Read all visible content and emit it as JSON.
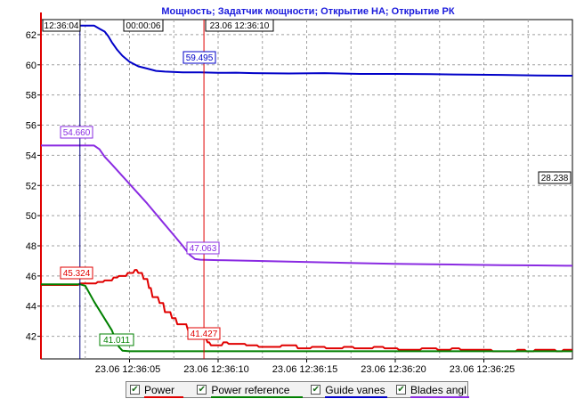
{
  "chart_data": {
    "type": "line",
    "title": "Мощность; Задатчик мощности; Открытие НА; Открытие РК",
    "xlabel": "",
    "ylabel": "",
    "ylim": [
      40.5,
      63
    ],
    "yticks": [
      "42",
      "44",
      "46",
      "48",
      "50",
      "52",
      "54",
      "56",
      "58",
      "60",
      "62"
    ],
    "xticks": [
      "23.06  12:36:05",
      "23.06  12:36:10",
      "23.06  12:36:15",
      "23.06  12:36:20",
      "23.06  12:36:25"
    ],
    "grid": true,
    "x_unit": "seconds after 12:36:00",
    "series": [
      {
        "name": "Power",
        "color": "#e00000",
        "points": [
          [
            0,
            45.4
          ],
          [
            2.1,
            45.4
          ],
          [
            2.2,
            45.5
          ],
          [
            3.1,
            45.5
          ],
          [
            3.2,
            45.6
          ],
          [
            3.5,
            45.6
          ],
          [
            3.6,
            45.7
          ],
          [
            4.0,
            45.7
          ],
          [
            4.1,
            45.9
          ],
          [
            4.3,
            45.9
          ],
          [
            4.4,
            46.0
          ],
          [
            4.8,
            46.0
          ],
          [
            4.9,
            46.2
          ],
          [
            5.2,
            46.2
          ],
          [
            5.3,
            46.4
          ],
          [
            5.4,
            46.4
          ],
          [
            5.5,
            46.2
          ],
          [
            5.7,
            46.2
          ],
          [
            5.8,
            45.8
          ],
          [
            6.0,
            45.8
          ],
          [
            6.1,
            45.2
          ],
          [
            6.2,
            45.2
          ],
          [
            6.3,
            44.6
          ],
          [
            6.6,
            44.6
          ],
          [
            6.7,
            44.2
          ],
          [
            6.9,
            44.2
          ],
          [
            7.0,
            43.6
          ],
          [
            7.3,
            43.6
          ],
          [
            7.4,
            43.2
          ],
          [
            7.6,
            43.2
          ],
          [
            7.7,
            42.8
          ],
          [
            8.2,
            42.8
          ],
          [
            8.3,
            42.4
          ],
          [
            8.6,
            42.4
          ],
          [
            8.7,
            41.9
          ],
          [
            9.3,
            41.9
          ],
          [
            9.4,
            41.6
          ],
          [
            9.5,
            41.6
          ],
          [
            9.6,
            41.4
          ],
          [
            10.2,
            41.4
          ],
          [
            10.3,
            41.6
          ],
          [
            10.5,
            41.6
          ],
          [
            10.6,
            41.5
          ],
          [
            11.5,
            41.5
          ],
          [
            11.6,
            41.4
          ],
          [
            12.2,
            41.4
          ],
          [
            12.3,
            41.3
          ],
          [
            13.5,
            41.3
          ],
          [
            13.6,
            41.4
          ],
          [
            14.4,
            41.4
          ],
          [
            14.5,
            41.2
          ],
          [
            15.2,
            41.2
          ],
          [
            15.3,
            41.3
          ],
          [
            16.0,
            41.3
          ],
          [
            16.1,
            41.2
          ],
          [
            17.0,
            41.2
          ],
          [
            17.1,
            41.3
          ],
          [
            17.6,
            41.3
          ],
          [
            17.7,
            41.2
          ],
          [
            18.7,
            41.2
          ],
          [
            18.8,
            41.3
          ],
          [
            19.3,
            41.3
          ],
          [
            19.4,
            41.2
          ],
          [
            20.1,
            41.2
          ],
          [
            20.2,
            41.1
          ],
          [
            21.4,
            41.1
          ],
          [
            21.5,
            41.2
          ],
          [
            22.3,
            41.2
          ],
          [
            22.4,
            41.1
          ],
          [
            23.1,
            41.1
          ],
          [
            23.2,
            41.2
          ],
          [
            23.6,
            41.2
          ],
          [
            23.7,
            41.1
          ],
          [
            25.4,
            41.1
          ],
          [
            25.5,
            41.0
          ],
          [
            26.8,
            41.0
          ],
          [
            26.9,
            41.1
          ],
          [
            27.3,
            41.1
          ],
          [
            27.4,
            41.0
          ],
          [
            27.8,
            41.0
          ],
          [
            27.9,
            41.1
          ],
          [
            29.0,
            41.1
          ],
          [
            29.1,
            41.0
          ],
          [
            29.4,
            41.0
          ],
          [
            29.5,
            41.1
          ],
          [
            30.0,
            41.1
          ]
        ]
      },
      {
        "name": "Power reference",
        "color": "#008000",
        "points": [
          [
            0,
            45.45
          ],
          [
            2.2,
            45.45
          ],
          [
            2.5,
            45.35
          ],
          [
            3.0,
            44.3
          ],
          [
            4.0,
            42.4
          ],
          [
            4.2,
            41.8
          ],
          [
            4.4,
            41.3
          ],
          [
            4.6,
            41.05
          ],
          [
            5.0,
            41.01
          ],
          [
            30.0,
            41.01
          ]
        ]
      },
      {
        "name": "Guide vanes",
        "color": "#0000c8",
        "points": [
          [
            2.2,
            62.6
          ],
          [
            3.0,
            62.6
          ],
          [
            3.3,
            62.4
          ],
          [
            3.6,
            62.2
          ],
          [
            3.8,
            61.9
          ],
          [
            4.0,
            61.5
          ],
          [
            4.3,
            61.0
          ],
          [
            4.6,
            60.6
          ],
          [
            5.0,
            60.2
          ],
          [
            5.5,
            59.9
          ],
          [
            6.0,
            59.75
          ],
          [
            6.5,
            59.6
          ],
          [
            7.0,
            59.55
          ],
          [
            8.0,
            59.5
          ],
          [
            9.0,
            59.5
          ],
          [
            10.0,
            59.47
          ],
          [
            11.0,
            59.48
          ],
          [
            12.0,
            59.45
          ],
          [
            14.0,
            59.43
          ],
          [
            16.0,
            59.45
          ],
          [
            18.0,
            59.4
          ],
          [
            20.0,
            59.4
          ],
          [
            22.0,
            59.38
          ],
          [
            24.0,
            59.35
          ],
          [
            26.0,
            59.33
          ],
          [
            28.0,
            59.3
          ],
          [
            30.0,
            59.28
          ]
        ]
      },
      {
        "name": "Blades angl",
        "color": "#8a2be2",
        "points": [
          [
            0,
            54.65
          ],
          [
            3.0,
            54.65
          ],
          [
            3.3,
            54.4
          ],
          [
            3.6,
            53.9
          ],
          [
            4.0,
            53.4
          ],
          [
            5.0,
            52.1
          ],
          [
            6.0,
            50.8
          ],
          [
            7.0,
            49.4
          ],
          [
            7.5,
            48.7
          ],
          [
            8.0,
            48.0
          ],
          [
            8.4,
            47.4
          ],
          [
            8.7,
            47.12
          ],
          [
            9.0,
            47.08
          ],
          [
            10.0,
            47.05
          ],
          [
            12.0,
            47.0
          ],
          [
            14.0,
            46.95
          ],
          [
            16.0,
            46.9
          ],
          [
            18.0,
            46.85
          ],
          [
            20.0,
            46.8
          ],
          [
            22.0,
            46.78
          ],
          [
            24.0,
            46.75
          ],
          [
            26.0,
            46.72
          ],
          [
            28.0,
            46.7
          ],
          [
            30.0,
            46.68
          ]
        ]
      }
    ],
    "cursors": [
      {
        "name": "cursor-left",
        "x": 2.2,
        "color": "#000080"
      },
      {
        "name": "cursor-right",
        "x": 9.2,
        "color": "#e00000"
      }
    ],
    "annotations": {
      "time_left": "12:36:04",
      "delta": "00:00:06",
      "time_right": "23.06 12:36:10",
      "guide_vanes_value": "59.495",
      "blades_left_value": "54.660",
      "blades_right_value": "47.063",
      "power_left_value": "45.324",
      "power_right_value": "41.427",
      "power_ref_value": "41.011",
      "right_value": "28.238"
    }
  },
  "legend": {
    "items": [
      {
        "label": "Power",
        "color": "#e00000",
        "checked": "✔"
      },
      {
        "label": "Power reference",
        "color": "#008000",
        "checked": "✔"
      },
      {
        "label": "Guide vanes",
        "color": "#0000c8",
        "checked": "✔"
      },
      {
        "label": "Blades angl",
        "color": "#8a2be2",
        "checked": "✔"
      }
    ]
  }
}
